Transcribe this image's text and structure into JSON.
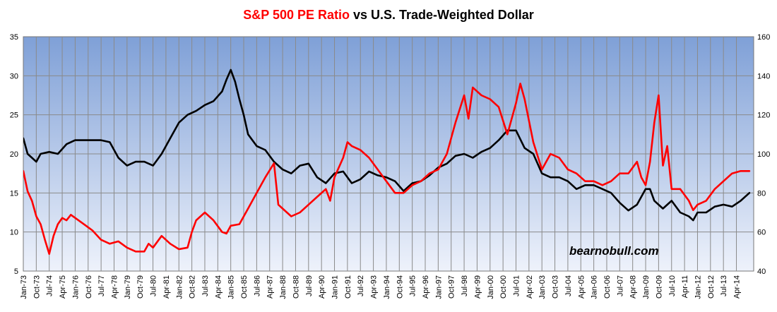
{
  "chart_data": {
    "type": "line",
    "title_part_1": "S&P 500 PE Ratio",
    "title_part_2": " vs U.S. Trade-Weighted Dollar",
    "watermark": "bearnobull.com",
    "left_axis": {
      "min": 5,
      "max": 35,
      "ticks": [
        "5",
        "10",
        "15",
        "20",
        "25",
        "30",
        "35"
      ]
    },
    "right_axis": {
      "min": 40,
      "max": 160,
      "ticks": [
        "40",
        "60",
        "80",
        "100",
        "120",
        "140",
        "160"
      ]
    },
    "x_labels": [
      "Jan-73",
      "Oct-73",
      "Jul-74",
      "Apr-75",
      "Jan-76",
      "Oct-76",
      "Jul-77",
      "Apr-78",
      "Jan-79",
      "Oct-79",
      "Jul-80",
      "Apr-81",
      "Jan-82",
      "Oct-82",
      "Jul-83",
      "Apr-84",
      "Jan-85",
      "Oct-85",
      "Jul-86",
      "Apr-87",
      "Jan-88",
      "Oct-88",
      "Jul-89",
      "Apr-90",
      "Jan-91",
      "Oct-91",
      "Jul-92",
      "Apr-93",
      "Jan-94",
      "Oct-94",
      "Jul-95",
      "Apr-96",
      "Jan-97",
      "Oct-97",
      "Jul-98",
      "Apr-99",
      "Jan-00",
      "Oct-00",
      "Jul-01",
      "Apr-02",
      "Jan-03",
      "Oct-03",
      "Jul-04",
      "Apr-05",
      "Jan-06",
      "Oct-06",
      "Jul-07",
      "Apr-08",
      "Jan-09",
      "Oct-09",
      "Jul-10",
      "Apr-11",
      "Jan-12",
      "Oct-12",
      "Jul-13",
      "Apr-14"
    ],
    "x_range": [
      1973.0,
      2015.25
    ],
    "series": [
      {
        "name": "S&P 500 PE Ratio",
        "axis": "left",
        "color": "#ff0000",
        "x": [
          1973.0,
          1973.25,
          1973.5,
          1973.75,
          1974.0,
          1974.25,
          1974.5,
          1974.75,
          1975.0,
          1975.25,
          1975.5,
          1975.75,
          1976.0,
          1976.5,
          1977.0,
          1977.5,
          1978.0,
          1978.5,
          1979.0,
          1979.5,
          1980.0,
          1980.25,
          1980.5,
          1981.0,
          1981.5,
          1982.0,
          1982.5,
          1982.75,
          1983.0,
          1983.5,
          1984.0,
          1984.5,
          1984.75,
          1985.0,
          1985.5,
          1986.0,
          1986.5,
          1987.0,
          1987.5,
          1987.75,
          1988.0,
          1988.5,
          1989.0,
          1989.5,
          1990.0,
          1990.5,
          1990.75,
          1991.0,
          1991.5,
          1991.75,
          1992.0,
          1992.5,
          1993.0,
          1993.5,
          1994.0,
          1994.5,
          1995.0,
          1995.5,
          1996.0,
          1996.5,
          1997.0,
          1997.5,
          1998.0,
          1998.5,
          1998.75,
          1999.0,
          1999.5,
          2000.0,
          2000.5,
          2001.0,
          2001.25,
          2001.5,
          2001.75,
          2002.0,
          2002.5,
          2003.0,
          2003.5,
          2004.0,
          2004.5,
          2005.0,
          2005.5,
          2006.0,
          2006.5,
          2007.0,
          2007.5,
          2008.0,
          2008.5,
          2008.75,
          2009.0,
          2009.25,
          2009.5,
          2009.75,
          2010.0,
          2010.25,
          2010.5,
          2011.0,
          2011.5,
          2011.75,
          2012.0,
          2012.5,
          2013.0,
          2013.5,
          2014.0,
          2014.5,
          2015.0
        ],
        "values": [
          17.8,
          15.2,
          14.0,
          12.0,
          11.0,
          9.0,
          7.2,
          9.5,
          11.0,
          11.8,
          11.5,
          12.2,
          11.8,
          11.0,
          10.2,
          9.0,
          8.5,
          8.8,
          8.0,
          7.5,
          7.5,
          8.5,
          8.0,
          9.5,
          8.5,
          7.8,
          8.0,
          10.0,
          11.5,
          12.5,
          11.5,
          10.0,
          9.8,
          10.8,
          11.0,
          13.0,
          15.0,
          17.0,
          18.8,
          13.5,
          13.0,
          12.0,
          12.5,
          13.5,
          14.5,
          15.5,
          14.0,
          17.0,
          19.5,
          21.5,
          21.0,
          20.5,
          19.5,
          18.0,
          16.5,
          15.0,
          15.0,
          16.0,
          16.5,
          17.5,
          18.0,
          20.0,
          24.0,
          27.5,
          24.5,
          28.5,
          27.5,
          27.0,
          26.0,
          22.5,
          24.5,
          26.5,
          29.0,
          27.0,
          21.5,
          18.0,
          20.0,
          19.5,
          18.0,
          17.5,
          16.5,
          16.5,
          16.0,
          16.5,
          17.5,
          17.5,
          19.0,
          17.0,
          16.0,
          19.0,
          24.0,
          27.5,
          18.5,
          21.0,
          15.5,
          15.5,
          14.0,
          12.8,
          13.5,
          14.0,
          15.5,
          16.5,
          17.5,
          17.8,
          17.8
        ]
      },
      {
        "name": "U.S. Trade-Weighted Dollar",
        "axis": "right",
        "color": "#000000",
        "x": [
          1973.0,
          1973.25,
          1973.5,
          1973.75,
          1974.0,
          1974.5,
          1975.0,
          1975.5,
          1976.0,
          1976.5,
          1977.0,
          1977.5,
          1978.0,
          1978.5,
          1979.0,
          1979.5,
          1980.0,
          1980.5,
          1981.0,
          1981.5,
          1982.0,
          1982.5,
          1983.0,
          1983.5,
          1984.0,
          1984.5,
          1984.75,
          1985.0,
          1985.25,
          1985.5,
          1985.75,
          1986.0,
          1986.5,
          1987.0,
          1987.5,
          1988.0,
          1988.5,
          1989.0,
          1989.5,
          1990.0,
          1990.5,
          1991.0,
          1991.5,
          1992.0,
          1992.5,
          1993.0,
          1993.5,
          1994.0,
          1994.5,
          1995.0,
          1995.5,
          1996.0,
          1996.5,
          1997.0,
          1997.5,
          1998.0,
          1998.5,
          1999.0,
          1999.5,
          2000.0,
          2000.5,
          2001.0,
          2001.5,
          2002.0,
          2002.5,
          2003.0,
          2003.5,
          2004.0,
          2004.5,
          2005.0,
          2005.5,
          2006.0,
          2006.5,
          2007.0,
          2007.5,
          2008.0,
          2008.5,
          2009.0,
          2009.25,
          2009.5,
          2010.0,
          2010.5,
          2011.0,
          2011.5,
          2011.75,
          2012.0,
          2012.5,
          2013.0,
          2013.5,
          2014.0,
          2014.5,
          2015.0
        ],
        "values": [
          108,
          100,
          98,
          96,
          100,
          101,
          100,
          105,
          107,
          107,
          107,
          107,
          106,
          98,
          94,
          96,
          96,
          94,
          100,
          108,
          116,
          120,
          122,
          125,
          127,
          132,
          138,
          143,
          137,
          128,
          120,
          110,
          104,
          102,
          96,
          92,
          90,
          94,
          95,
          88,
          85,
          90,
          91,
          85,
          87,
          91,
          89,
          88,
          86,
          81,
          85,
          86,
          89,
          93,
          95,
          99,
          100,
          98,
          101,
          103,
          107,
          112,
          112,
          103,
          100,
          90,
          88,
          88,
          86,
          82,
          84,
          84,
          82,
          80,
          75,
          71,
          74,
          82,
          82,
          76,
          72,
          76,
          70,
          68,
          66,
          70,
          70,
          73,
          74,
          73,
          76,
          80
        ]
      }
    ]
  }
}
